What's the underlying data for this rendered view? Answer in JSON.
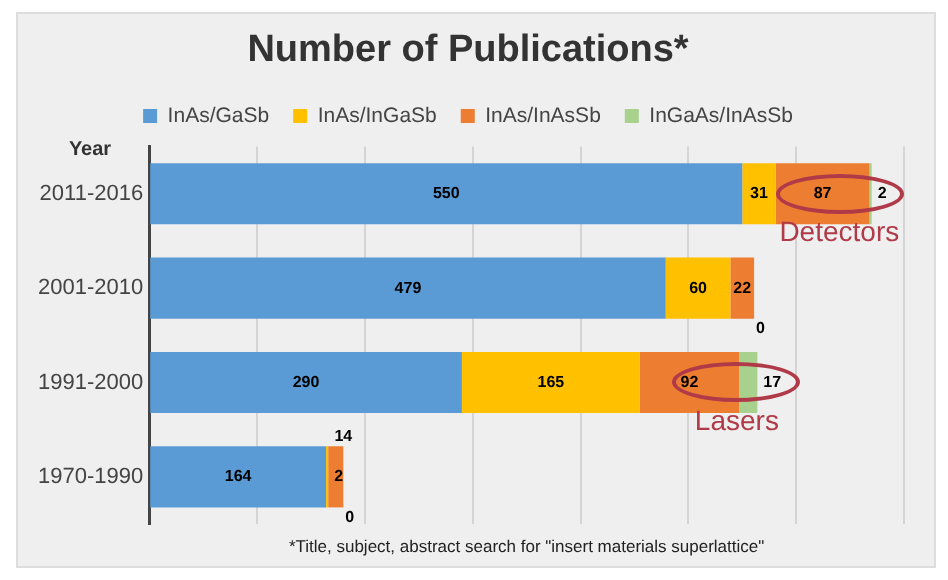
{
  "chart_data": {
    "type": "bar",
    "orientation": "horizontal",
    "stacked": true,
    "title": "Number of Publications*",
    "ylabel": "Year",
    "categories": [
      "2011-2016",
      "2001-2010",
      "1991-2000",
      "1970-1990"
    ],
    "series": [
      {
        "name": "InAs/GaSb",
        "color": "#5b9bd5",
        "values": [
          550,
          479,
          290,
          164
        ]
      },
      {
        "name": "InAs/InGaSb",
        "color": "#ffc000",
        "values": [
          31,
          60,
          165,
          2
        ]
      },
      {
        "name": "InAs/InAsSb",
        "color": "#ed7d31",
        "values": [
          87,
          22,
          92,
          14
        ]
      },
      {
        "name": "InGaAs/InAsSb",
        "color": "#a9d18e",
        "values": [
          2,
          0,
          17,
          0
        ]
      }
    ],
    "xlim": [
      0,
      700
    ],
    "xticks": [
      {
        "value": 0,
        "label": null
      },
      {
        "value": 100,
        "label": null
      },
      {
        "value": 200,
        "label": null
      },
      {
        "value": 300,
        "label": null
      },
      {
        "value": 400,
        "label": null
      },
      {
        "value": 500,
        "label": null
      },
      {
        "value": 600,
        "label": null
      },
      {
        "value": 700,
        "label": null
      }
    ],
    "tick_labels": "y",
    "grid": "x",
    "legend": "top",
    "data_labels": true,
    "annotations": [
      {
        "text": "Detectors",
        "x": 640,
        "y": "2011-2016"
      },
      {
        "text": "Lasers",
        "x": 545,
        "y": "1991-2000"
      },
      "*Title, subject, abstract search for \"insert materials superlattice\""
    ]
  }
}
